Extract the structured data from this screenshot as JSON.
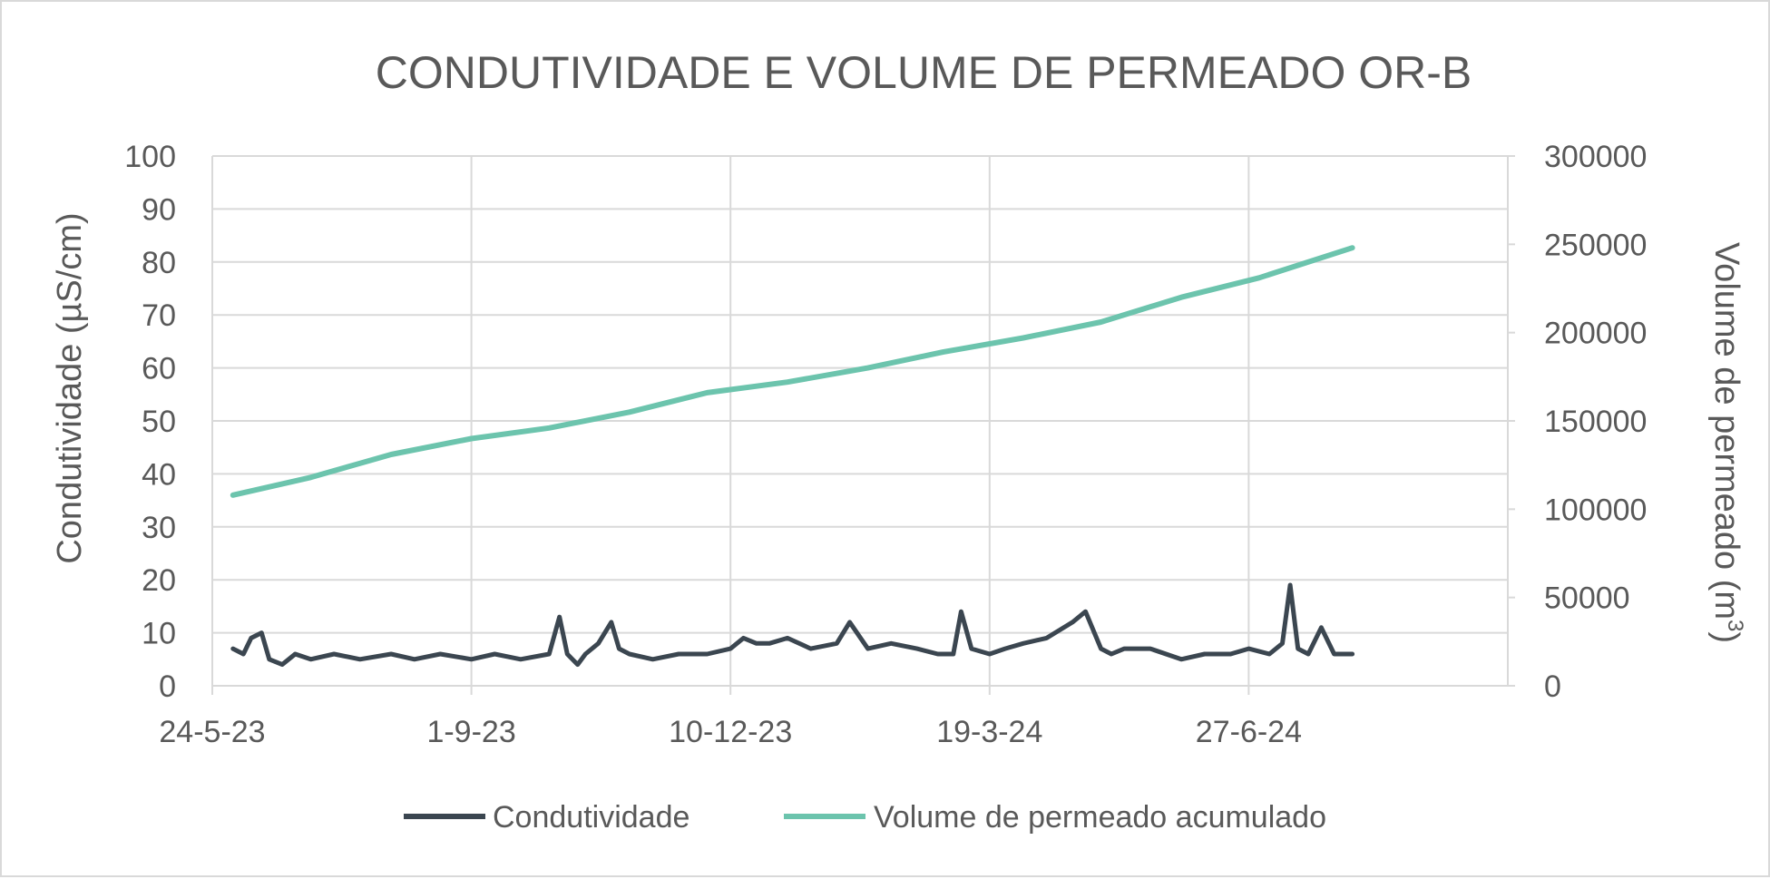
{
  "chart_data": {
    "type": "line",
    "title": "CONDUTIVIDADE E VOLUME DE PERMEADO OR-B",
    "xlabel": "",
    "ylabel": "Condutividade (µS/cm)",
    "y2label_main": "Volume de permeado (m",
    "y2label_sup": "3",
    "y2label_close": ")",
    "x_tick_labels": [
      "24-5-23",
      "1-9-23",
      "10-12-23",
      "19-3-24",
      "27-6-24"
    ],
    "x_tick_dates": [
      "2023-05-24",
      "2023-09-01",
      "2023-12-10",
      "2024-03-19",
      "2024-06-27"
    ],
    "xlim": [
      "2023-05-24",
      "2024-10-05"
    ],
    "ylim": [
      0,
      100
    ],
    "y_ticks": [
      "0",
      "10",
      "20",
      "30",
      "40",
      "50",
      "60",
      "70",
      "80",
      "90",
      "100"
    ],
    "y2lim": [
      0,
      300000
    ],
    "y2_ticks": [
      "0",
      "50000",
      "100000",
      "150000",
      "200000",
      "250000",
      "300000"
    ],
    "grid": true,
    "legend_position": "bottom",
    "colors": {
      "conductivity": "#3b4650",
      "volume": "#6cc4ad",
      "grid": "#d9d9d9",
      "text": "#595959"
    },
    "series": [
      {
        "name": "Condutividade",
        "axis": "left",
        "x": [
          "2023-06-01",
          "2023-06-05",
          "2023-06-08",
          "2023-06-12",
          "2023-06-15",
          "2023-06-20",
          "2023-06-25",
          "2023-07-01",
          "2023-07-10",
          "2023-07-20",
          "2023-08-01",
          "2023-08-10",
          "2023-08-20",
          "2023-09-01",
          "2023-09-10",
          "2023-09-20",
          "2023-10-01",
          "2023-10-05",
          "2023-10-08",
          "2023-10-12",
          "2023-10-15",
          "2023-10-20",
          "2023-10-25",
          "2023-10-28",
          "2023-11-01",
          "2023-11-10",
          "2023-11-20",
          "2023-12-01",
          "2023-12-10",
          "2023-12-15",
          "2023-12-20",
          "2023-12-25",
          "2024-01-01",
          "2024-01-10",
          "2024-01-20",
          "2024-01-25",
          "2024-02-01",
          "2024-02-10",
          "2024-02-20",
          "2024-02-28",
          "2024-03-05",
          "2024-03-08",
          "2024-03-12",
          "2024-03-19",
          "2024-03-25",
          "2024-04-01",
          "2024-04-10",
          "2024-04-20",
          "2024-04-25",
          "2024-05-01",
          "2024-05-05",
          "2024-05-10",
          "2024-05-20",
          "2024-06-01",
          "2024-06-10",
          "2024-06-20",
          "2024-06-27",
          "2024-07-05",
          "2024-07-10",
          "2024-07-13",
          "2024-07-16",
          "2024-07-20",
          "2024-07-25",
          "2024-07-30",
          "2024-08-03",
          "2024-08-06"
        ],
        "values": [
          7,
          6,
          9,
          10,
          5,
          4,
          6,
          5,
          6,
          5,
          6,
          5,
          6,
          5,
          6,
          5,
          6,
          13,
          6,
          4,
          6,
          8,
          12,
          7,
          6,
          5,
          6,
          6,
          7,
          9,
          8,
          8,
          9,
          7,
          8,
          12,
          7,
          8,
          7,
          6,
          6,
          14,
          7,
          6,
          7,
          8,
          9,
          12,
          14,
          7,
          6,
          7,
          7,
          5,
          6,
          6,
          7,
          6,
          8,
          19,
          7,
          6,
          11,
          6,
          6,
          6
        ]
      },
      {
        "name": "Volume de permeado acumulado",
        "axis": "right",
        "x": [
          "2023-06-01",
          "2023-07-01",
          "2023-08-01",
          "2023-09-01",
          "2023-10-01",
          "2023-11-01",
          "2023-12-01",
          "2024-01-01",
          "2024-02-01",
          "2024-03-01",
          "2024-04-01",
          "2024-05-01",
          "2024-06-01",
          "2024-07-01",
          "2024-08-06"
        ],
        "values": [
          108000,
          118000,
          131000,
          140000,
          146000,
          155000,
          166000,
          172000,
          180000,
          189000,
          197000,
          206000,
          220000,
          231000,
          248000
        ]
      }
    ]
  }
}
